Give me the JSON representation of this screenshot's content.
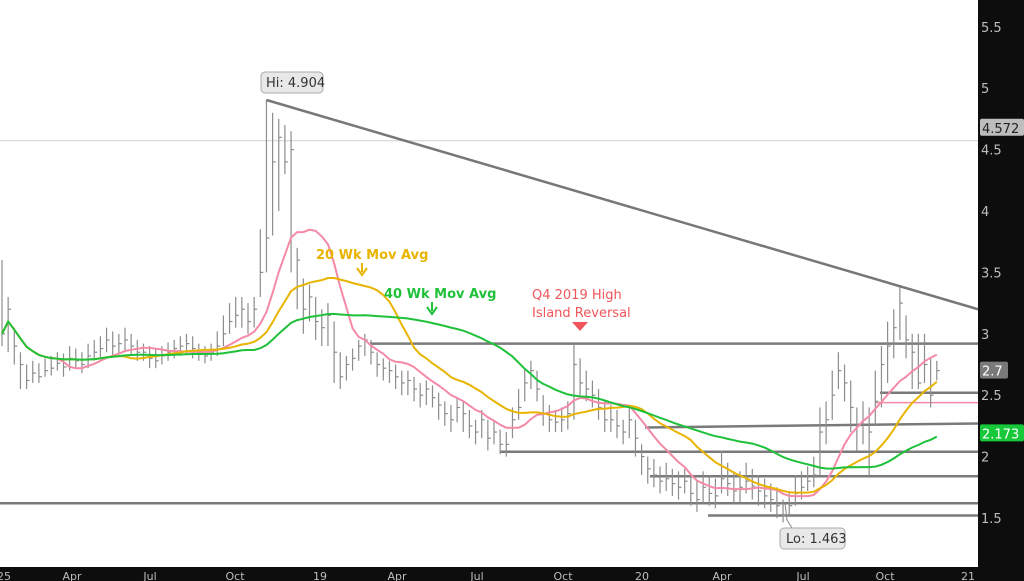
{
  "chart_data": {
    "type": "ohlc-bar",
    "title": "",
    "xlabel": "",
    "ylabel": "",
    "ylim": [
      1.28,
      5.7
    ],
    "grid": false,
    "y_ticks": [
      "5.5",
      "5",
      "4.5",
      "4",
      "3.5",
      "3",
      "2.5",
      "2",
      "1.5"
    ],
    "x_ticks": [
      "25",
      "Apr",
      "Jul",
      "Oct",
      "19",
      "Apr",
      "Jul",
      "Oct",
      "20",
      "Apr",
      "Jul",
      "Oct",
      "21"
    ],
    "weekly_close": [
      3.0,
      3.2,
      2.9,
      2.75,
      2.62,
      2.68,
      2.65,
      2.7,
      2.72,
      2.76,
      2.73,
      2.8,
      2.78,
      2.75,
      2.82,
      2.85,
      2.88,
      2.95,
      2.9,
      2.92,
      2.95,
      2.9,
      2.85,
      2.85,
      2.8,
      2.78,
      2.82,
      2.85,
      2.88,
      2.9,
      2.92,
      2.88,
      2.85,
      2.82,
      2.85,
      2.9,
      3.0,
      3.1,
      3.15,
      3.2,
      3.1,
      3.2,
      3.5,
      3.78,
      4.4,
      4.6,
      4.4,
      4.5,
      3.6,
      3.2,
      3.3,
      3.1,
      3.05,
      3.15,
      2.85,
      2.65,
      2.75,
      2.8,
      2.9,
      2.95,
      2.85,
      2.75,
      2.72,
      2.7,
      2.65,
      2.6,
      2.62,
      2.55,
      2.5,
      2.55,
      2.48,
      2.42,
      2.35,
      2.3,
      2.4,
      2.35,
      2.25,
      2.2,
      2.3,
      2.15,
      2.2,
      2.1,
      2.1,
      2.3,
      2.4,
      2.6,
      2.7,
      2.55,
      2.35,
      2.3,
      2.28,
      2.3,
      2.35,
      2.75,
      2.6,
      2.55,
      2.5,
      2.4,
      2.3,
      2.3,
      2.25,
      2.2,
      2.3,
      2.15,
      2.0,
      1.9,
      1.85,
      1.8,
      1.82,
      1.78,
      1.75,
      1.8,
      1.7,
      1.65,
      1.75,
      1.7,
      1.68,
      1.82,
      1.78,
      1.72,
      1.75,
      1.8,
      1.76,
      1.72,
      1.68,
      1.65,
      1.6,
      1.52,
      1.6,
      1.7,
      1.75,
      1.8,
      1.85,
      2.2,
      2.3,
      2.5,
      2.7,
      2.6,
      2.4,
      2.25,
      2.3,
      2.2,
      2.45,
      2.75,
      2.9,
      3.05,
      3.25,
      2.95,
      2.85,
      2.6,
      2.75,
      2.5,
      2.7
    ],
    "weekly_high": [
      3.6,
      3.3,
      3.05,
      2.85,
      2.75,
      2.78,
      2.76,
      2.8,
      2.82,
      2.85,
      2.84,
      2.9,
      2.88,
      2.85,
      2.92,
      2.95,
      2.98,
      3.05,
      3.02,
      3.0,
      3.05,
      3.0,
      2.95,
      2.92,
      2.9,
      2.88,
      2.9,
      2.93,
      2.95,
      2.98,
      3.0,
      2.98,
      2.92,
      2.9,
      2.92,
      3.02,
      3.15,
      3.25,
      3.3,
      3.3,
      3.25,
      3.3,
      3.85,
      4.904,
      4.8,
      4.75,
      4.7,
      4.65,
      3.7,
      3.45,
      3.4,
      3.3,
      3.2,
      3.25,
      3.1,
      2.85,
      2.82,
      2.88,
      2.95,
      3.0,
      2.95,
      2.85,
      2.8,
      2.78,
      2.75,
      2.7,
      2.7,
      2.65,
      2.6,
      2.62,
      2.58,
      2.52,
      2.45,
      2.42,
      2.48,
      2.45,
      2.38,
      2.3,
      2.38,
      2.3,
      2.3,
      2.22,
      2.2,
      2.4,
      2.55,
      2.72,
      2.78,
      2.7,
      2.5,
      2.42,
      2.38,
      2.4,
      2.45,
      2.92,
      2.8,
      2.7,
      2.62,
      2.55,
      2.45,
      2.42,
      2.38,
      2.3,
      2.4,
      2.3,
      2.1,
      2.0,
      1.98,
      1.92,
      1.95,
      1.9,
      1.88,
      1.9,
      1.85,
      1.8,
      1.88,
      1.85,
      1.82,
      2.05,
      1.95,
      1.88,
      1.88,
      1.95,
      1.9,
      1.85,
      1.82,
      1.78,
      1.75,
      1.65,
      1.72,
      1.85,
      1.88,
      1.92,
      2.0,
      2.4,
      2.45,
      2.7,
      2.85,
      2.75,
      2.62,
      2.4,
      2.45,
      2.4,
      2.7,
      2.9,
      3.1,
      3.2,
      3.38,
      3.15,
      3.0,
      3.0,
      3.0,
      2.8,
      2.78
    ],
    "weekly_low": [
      2.9,
      2.85,
      2.75,
      2.55,
      2.55,
      2.6,
      2.6,
      2.65,
      2.66,
      2.7,
      2.65,
      2.7,
      2.72,
      2.68,
      2.72,
      2.78,
      2.8,
      2.85,
      2.82,
      2.84,
      2.85,
      2.82,
      2.78,
      2.78,
      2.72,
      2.72,
      2.75,
      2.78,
      2.8,
      2.82,
      2.84,
      2.8,
      2.78,
      2.76,
      2.78,
      2.82,
      2.9,
      3.0,
      3.05,
      3.05,
      3.0,
      3.05,
      3.3,
      3.5,
      3.8,
      4.0,
      4.3,
      3.5,
      3.2,
      3.0,
      3.1,
      2.95,
      2.9,
      2.9,
      2.6,
      2.55,
      2.62,
      2.7,
      2.78,
      2.82,
      2.75,
      2.65,
      2.62,
      2.6,
      2.55,
      2.5,
      2.5,
      2.45,
      2.4,
      2.42,
      2.4,
      2.3,
      2.25,
      2.2,
      2.28,
      2.2,
      2.15,
      2.1,
      2.15,
      2.05,
      2.1,
      2.02,
      2.0,
      2.15,
      2.3,
      2.45,
      2.55,
      2.45,
      2.25,
      2.2,
      2.2,
      2.2,
      2.22,
      2.3,
      2.5,
      2.45,
      2.4,
      2.3,
      2.2,
      2.2,
      2.15,
      2.1,
      2.15,
      2.0,
      1.85,
      1.78,
      1.75,
      1.7,
      1.72,
      1.68,
      1.65,
      1.7,
      1.6,
      1.55,
      1.62,
      1.6,
      1.58,
      1.7,
      1.68,
      1.62,
      1.62,
      1.7,
      1.65,
      1.6,
      1.58,
      1.55,
      1.5,
      1.463,
      1.52,
      1.6,
      1.65,
      1.72,
      1.75,
      1.85,
      2.1,
      2.3,
      2.55,
      2.45,
      2.2,
      2.05,
      2.1,
      1.85,
      2.25,
      2.4,
      2.6,
      2.8,
      2.95,
      2.8,
      2.55,
      2.55,
      2.6,
      2.4,
      2.62
    ],
    "moving_averages": [
      {
        "name": "",
        "period": 10,
        "color": "#f48aa6"
      },
      {
        "name": "20 Wk Mov Avg",
        "period": 20,
        "color": "#e8b400"
      },
      {
        "name": "40 Wk Mov Avg",
        "period": 40,
        "color": "#1fc03a"
      }
    ],
    "trendline": {
      "from": 4.904,
      "to": 3.2,
      "color": "#777777"
    },
    "support_resistance_levels": [
      2.92,
      2.52,
      2.44,
      2.27,
      2.04,
      1.84,
      1.62,
      1.52
    ],
    "reference_line": 4.572,
    "annotations": {
      "high": "Hi: 4.904",
      "low": "Lo: 1.463",
      "ma20": "20 Wk Mov Avg",
      "ma40": "40 Wk Mov Avg",
      "reversal_line1": "Q4 2019 High",
      "reversal_line2": "Island Reversal"
    },
    "price_badges": [
      {
        "value": "4.572",
        "color": "#bdbdbd",
        "text_color": "#222222"
      },
      {
        "value": "2.7",
        "color": "#7a7a7a",
        "text_color": "#ffffff"
      },
      {
        "value": "2.173",
        "color": "#17c93a",
        "text_color": "#ffffff"
      }
    ],
    "colors": {
      "bars": "#8c8c8c",
      "axis_bg": "#0d0d0d",
      "axis_text": "#bdbdbd",
      "reversal": "#f0555a"
    }
  }
}
